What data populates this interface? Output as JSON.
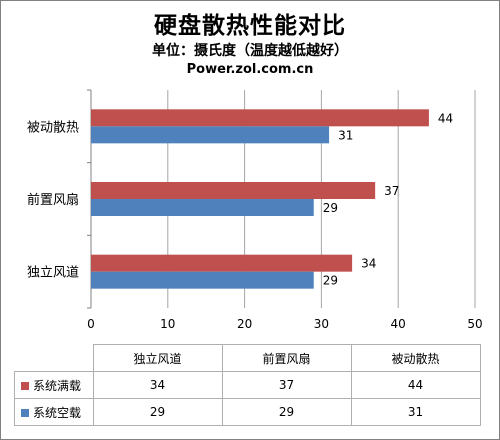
{
  "chart_data": {
    "type": "bar",
    "orientation": "horizontal",
    "title": "硬盘散热性能对比",
    "subtitle": "单位：摄氏度（温度越低越好）",
    "source": "Power.zol.com.cn",
    "categories": [
      "被动散热",
      "前置风扇",
      "独立风道"
    ],
    "series": [
      {
        "name": "系统满载",
        "color": "#c0504d",
        "values": [
          44,
          37,
          34
        ]
      },
      {
        "name": "系统空载",
        "color": "#4f81bd",
        "values": [
          31,
          29,
          29
        ]
      }
    ],
    "xlim": [
      0,
      50
    ],
    "xticks": [
      0,
      10,
      20,
      30,
      40,
      50
    ],
    "grid": true,
    "data_labels": true,
    "data_table": {
      "columns": [
        "独立风道",
        "前置风扇",
        "被动散热"
      ],
      "rows": [
        {
          "name": "系统满载",
          "color": "#c0504d",
          "values": [
            "34",
            "37",
            "44"
          ]
        },
        {
          "name": "系统空载",
          "color": "#4f81bd",
          "values": [
            "29",
            "29",
            "31"
          ]
        }
      ]
    }
  }
}
